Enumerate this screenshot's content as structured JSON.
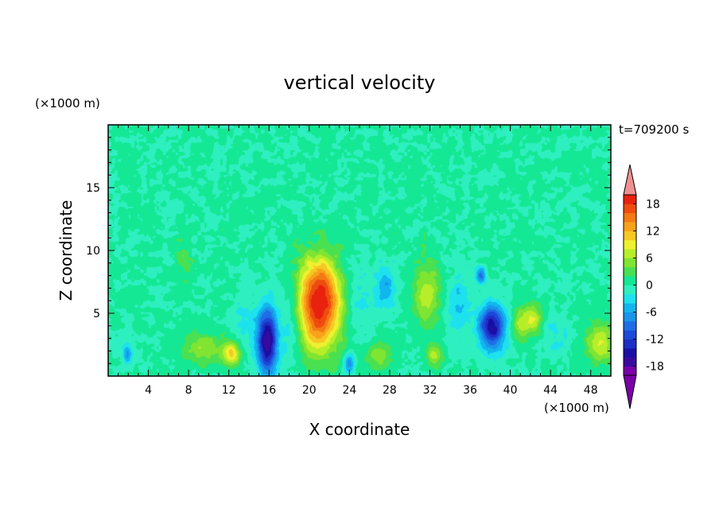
{
  "chart_data": {
    "type": "heatmap",
    "title": "vertical velocity",
    "timestamp": "t=709200 s",
    "xlabel": "X coordinate",
    "ylabel": "Z coordinate",
    "x_unit": "(×1000 m)",
    "y_unit": "(×1000 m)",
    "xlim": [
      0,
      50
    ],
    "ylim": [
      0,
      20
    ],
    "x_ticks": [
      4,
      8,
      12,
      16,
      20,
      24,
      28,
      32,
      36,
      40,
      44,
      48
    ],
    "y_ticks": [
      5,
      10,
      15
    ],
    "colorbar": {
      "min": -20,
      "max": 20,
      "step": 2,
      "tick_labels": [
        18,
        12,
        6,
        0,
        -6,
        -12,
        -18
      ],
      "extend": "both",
      "colors": [
        "#7a00a8",
        "#3a0a9e",
        "#1a0fa5",
        "#1f2ec4",
        "#1c49d8",
        "#1f6ee6",
        "#1a95ea",
        "#12b6ee",
        "#1de2ee",
        "#2eefbf",
        "#14e894",
        "#49e052",
        "#7fe432",
        "#b6ee2a",
        "#eef030",
        "#f6c823",
        "#f8a21b",
        "#f47a13",
        "#ef4c10",
        "#e8220e",
        "#ef9090"
      ]
    },
    "features": [
      {
        "x": 21.0,
        "z": 5.0,
        "w": 2.2,
        "h": 3.2,
        "value": 16
      },
      {
        "x": 21.0,
        "z": 7.5,
        "w": 2.0,
        "h": 2.6,
        "value": 8
      },
      {
        "x": 15.8,
        "z": 2.8,
        "w": 1.0,
        "h": 2.6,
        "value": -18
      },
      {
        "x": 38.2,
        "z": 3.9,
        "w": 1.3,
        "h": 1.7,
        "value": -16
      },
      {
        "x": 31.7,
        "z": 6.6,
        "w": 1.3,
        "h": 2.6,
        "value": 7
      },
      {
        "x": 27.6,
        "z": 7.0,
        "w": 1.0,
        "h": 1.7,
        "value": -6
      },
      {
        "x": 1.9,
        "z": 1.8,
        "w": 0.5,
        "h": 0.9,
        "value": -7
      },
      {
        "x": 9.4,
        "z": 2.2,
        "w": 2.0,
        "h": 1.2,
        "value": 6
      },
      {
        "x": 12.3,
        "z": 1.8,
        "w": 0.9,
        "h": 0.9,
        "value": 10
      },
      {
        "x": 26.9,
        "z": 1.6,
        "w": 1.3,
        "h": 1.1,
        "value": 5
      },
      {
        "x": 32.4,
        "z": 1.6,
        "w": 0.8,
        "h": 0.9,
        "value": 6
      },
      {
        "x": 49.0,
        "z": 2.7,
        "w": 1.5,
        "h": 1.6,
        "value": 8
      },
      {
        "x": 40.9,
        "z": 4.2,
        "w": 0.8,
        "h": 1.2,
        "value": 6
      },
      {
        "x": 42.2,
        "z": 4.5,
        "w": 0.9,
        "h": 1.2,
        "value": 8
      },
      {
        "x": 37.1,
        "z": 8.0,
        "w": 0.5,
        "h": 0.7,
        "value": -9
      },
      {
        "x": 24.0,
        "z": 1.0,
        "w": 0.5,
        "h": 0.8,
        "value": -8
      },
      {
        "x": 7.5,
        "z": 9.0,
        "w": 0.8,
        "h": 1.5,
        "value": 3
      },
      {
        "x": 34.8,
        "z": 5.6,
        "w": 1.2,
        "h": 3.0,
        "value": -4
      },
      {
        "x": 24.8,
        "z": 6.3,
        "w": 1.2,
        "h": 3.0,
        "value": -3
      },
      {
        "x": 18.2,
        "z": 4.2,
        "w": 1.1,
        "h": 3.0,
        "value": -4
      },
      {
        "x": 13.5,
        "z": 4.2,
        "w": 1.0,
        "h": 2.0,
        "value": -3
      },
      {
        "x": 44.5,
        "z": 3.2,
        "w": 1.2,
        "h": 1.5,
        "value": -3
      }
    ]
  }
}
